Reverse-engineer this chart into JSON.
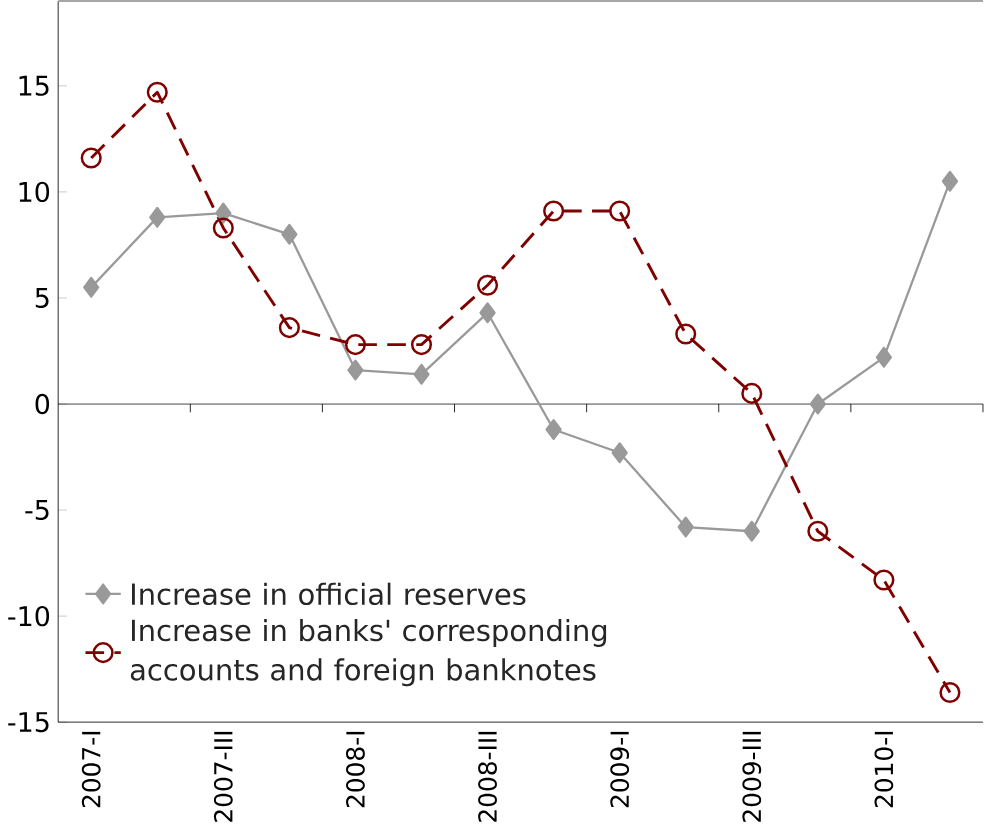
{
  "chart_data": {
    "type": "line",
    "categories": [
      "2007-I",
      null,
      "2007-III",
      null,
      "2008-I",
      null,
      "2008-III",
      null,
      "2009-I",
      null,
      "2009-III",
      null,
      "2010-I",
      null
    ],
    "series": [
      {
        "name": "Increase in official reserves",
        "color": "#999999",
        "marker": "diamond",
        "line_style": "solid",
        "values": [
          5.5,
          8.8,
          9.0,
          8.0,
          1.6,
          1.4,
          4.3,
          -1.2,
          -2.3,
          -5.8,
          -6.0,
          0.0,
          2.2,
          10.5
        ]
      },
      {
        "name": "Increase in banks' corresponding accounts and foreign banknotes",
        "color": "#800000",
        "marker": "circle",
        "line_style": "dashed",
        "values": [
          11.6,
          14.7,
          8.3,
          3.6,
          2.8,
          2.8,
          5.6,
          9.1,
          9.1,
          3.3,
          0.5,
          -6.0,
          -8.3,
          -13.6
        ]
      }
    ],
    "ylim": [
      -15,
      19
    ],
    "yticks": [
      -15,
      -10,
      -5,
      0,
      5,
      10,
      15
    ],
    "grid": false,
    "ref_lines": [
      {
        "axis": "y",
        "value": 0,
        "color": "#000000"
      }
    ],
    "legend": "bottom left"
  }
}
